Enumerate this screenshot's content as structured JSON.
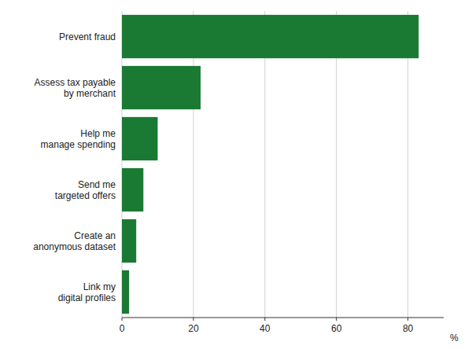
{
  "chart_data": {
    "type": "bar",
    "orientation": "horizontal",
    "categories": [
      "Link my\ndigital profiles",
      "Create an\nanonymous dataset",
      "Send me\ntargeted offers",
      "Help me\nmanage spending",
      "Assess tax payable\nby merchant",
      "Prevent fraud"
    ],
    "values": [
      2,
      4,
      6,
      10,
      22,
      83
    ],
    "color": "#1a7a34",
    "xlim": [
      0,
      90
    ],
    "xticks": [
      0,
      20,
      40,
      60,
      80
    ],
    "xlabel": "%",
    "grid": true
  }
}
